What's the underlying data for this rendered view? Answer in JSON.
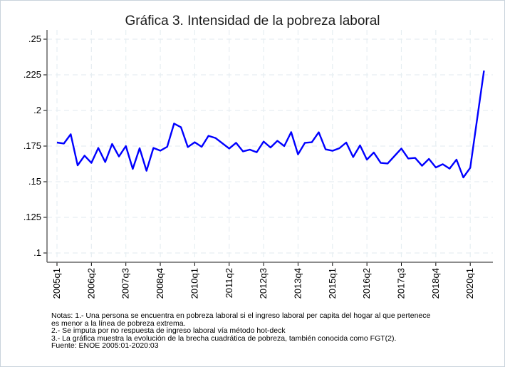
{
  "chart_data": {
    "type": "line",
    "title": "Gráfica 3. Intensidad de la pobreza laboral",
    "xlabel": "",
    "ylabel": "",
    "ylim": [
      0.1,
      0.25
    ],
    "yticks": [
      ".1",
      ".125",
      ".15",
      ".175",
      ".2",
      ".225",
      ".25"
    ],
    "ytick_values": [
      0.1,
      0.125,
      0.15,
      0.175,
      0.2,
      0.225,
      0.25
    ],
    "xtick_labels": [
      "2005q1",
      "2006q2",
      "2007q3",
      "2008q4",
      "2010q1",
      "2011q2",
      "2012q3",
      "2013q4",
      "2015q1",
      "2016q2",
      "2017q3",
      "2018q4",
      "2020q1"
    ],
    "x_start": "2005q1",
    "x_end": "2020q3",
    "grid": true,
    "line_color": "#0000ff",
    "values": [
      0.1775,
      0.1768,
      0.1833,
      0.1615,
      0.1683,
      0.1632,
      0.1737,
      0.1638,
      0.1765,
      0.1677,
      0.175,
      0.159,
      0.1735,
      0.1577,
      0.1737,
      0.1718,
      0.1745,
      0.1908,
      0.1882,
      0.1743,
      0.1777,
      0.1745,
      0.1822,
      0.1807,
      0.177,
      0.1733,
      0.1773,
      0.1713,
      0.1725,
      0.1707,
      0.1782,
      0.174,
      0.1787,
      0.175,
      0.1848,
      0.1692,
      0.1773,
      0.1777,
      0.1847,
      0.1727,
      0.1717,
      0.1735,
      0.1775,
      0.1673,
      0.1755,
      0.1655,
      0.1705,
      0.1632,
      0.1628,
      0.168,
      0.1733,
      0.1663,
      0.1667,
      0.1612,
      0.166,
      0.16,
      0.1623,
      0.1592,
      0.1655,
      0.153,
      0.1598,
      null,
      0.228
    ]
  },
  "notes": [
    "Notas: 1.- Una persona se encuentra en pobreza laboral si el ingreso laboral per capita del hogar al que pertenece",
    "es menor a la línea de pobreza extrema.",
    "2.- Se imputa por no respuesta de ingreso laboral vía método hot-deck",
    "3.- La gráfica muestra la evolución de la brecha cuadrática de pobreza, también conocida como FGT(2).",
    "Fuente: ENOE 2005:01-2020:03"
  ]
}
